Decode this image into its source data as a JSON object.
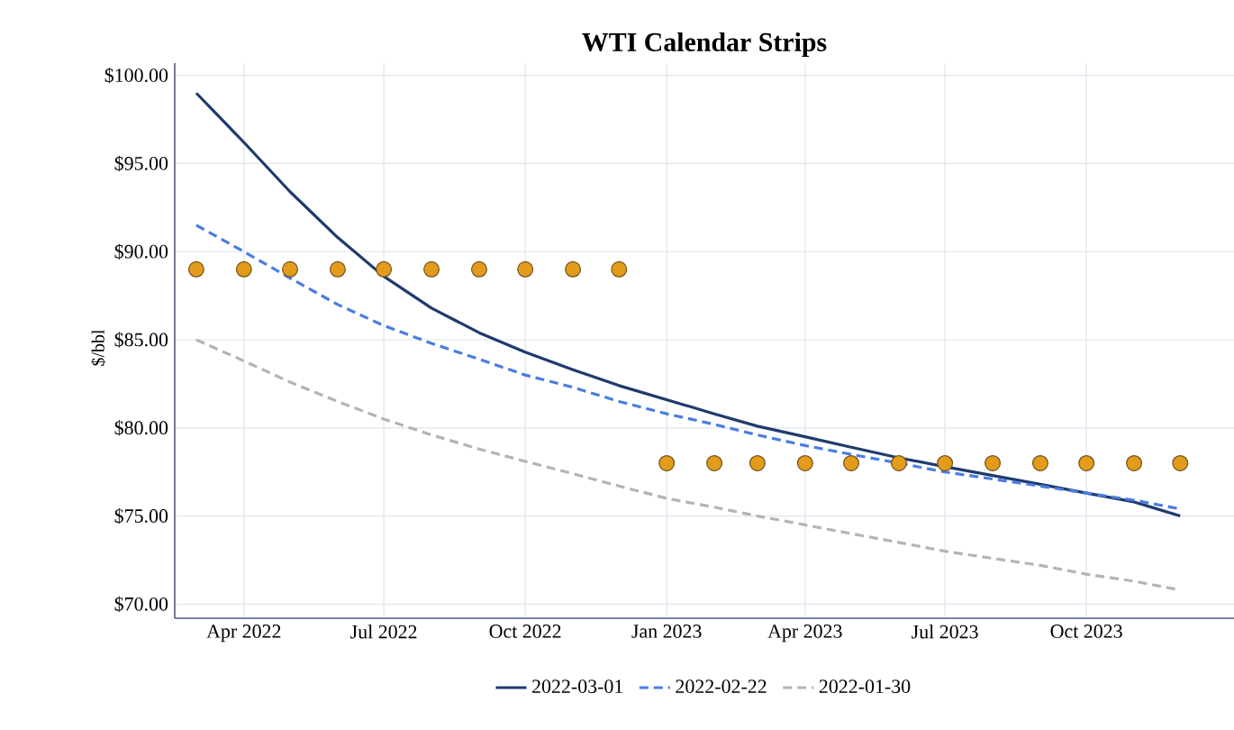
{
  "chart_data": {
    "type": "line",
    "title": "WTI Calendar Strips",
    "ylabel": "$/bbl",
    "x": [
      "2022-03",
      "2022-04",
      "2022-05",
      "2022-06",
      "2022-07",
      "2022-08",
      "2022-09",
      "2022-10",
      "2022-11",
      "2022-12",
      "2023-01",
      "2023-02",
      "2023-03",
      "2023-04",
      "2023-05",
      "2023-06",
      "2023-07",
      "2023-08",
      "2023-09",
      "2023-10",
      "2023-11",
      "2023-12"
    ],
    "series": [
      {
        "name": "2022-03-01",
        "color": "#1f3a6e",
        "line_style": "solid",
        "values": [
          99.0,
          96.2,
          93.4,
          90.8,
          88.6,
          86.8,
          85.4,
          84.3,
          83.3,
          82.4,
          81.6,
          80.8,
          80.1,
          79.5,
          78.9,
          78.3,
          77.8,
          77.3,
          76.8,
          76.3,
          75.8,
          75.0
        ]
      },
      {
        "name": "2022-02-22",
        "color": "#4a7de0",
        "line_style": "dashed",
        "values": [
          91.5,
          90.0,
          88.5,
          87.0,
          85.8,
          84.8,
          83.9,
          83.0,
          82.3,
          81.5,
          80.8,
          80.2,
          79.6,
          79.0,
          78.5,
          78.0,
          77.5,
          77.1,
          76.7,
          76.3,
          75.9,
          75.4
        ]
      },
      {
        "name": "2022-01-30",
        "color": "#b4b4b4",
        "line_style": "dashed",
        "values": [
          85.0,
          83.8,
          82.6,
          81.5,
          80.5,
          79.6,
          78.8,
          78.1,
          77.4,
          76.7,
          76.0,
          75.5,
          75.0,
          74.5,
          74.0,
          73.5,
          73.0,
          72.6,
          72.2,
          71.7,
          71.3,
          70.8
        ]
      },
      {
        "type": "scatter",
        "marker": "circle",
        "color": "#e39b1b",
        "values": [
          89.0,
          89.0,
          89.0,
          89.0,
          89.0,
          89.0,
          89.0,
          89.0,
          89.0,
          89.0,
          78.0,
          78.0,
          78.0,
          78.0,
          78.0,
          78.0,
          78.0,
          78.0,
          78.0,
          78.0,
          78.0,
          78.0
        ]
      }
    ],
    "marker": "none",
    "xlim": [
      "2022-02-15",
      "2024-01-05"
    ],
    "xticks": [
      {
        "value": "2022-04",
        "label": "Apr 2022"
      },
      {
        "value": "2022-07",
        "label": "Jul 2022"
      },
      {
        "value": "2022-10",
        "label": "Oct 2022"
      },
      {
        "value": "2023-01",
        "label": "Jan 2023"
      },
      {
        "value": "2023-04",
        "label": "Apr 2023"
      },
      {
        "value": "2023-07",
        "label": "Jul 2023"
      },
      {
        "value": "2023-10",
        "label": "Oct 2023"
      }
    ],
    "ylim": [
      69.2,
      100.7
    ],
    "yticks": [
      {
        "value": 70,
        "label": "$70.00"
      },
      {
        "value": 75,
        "label": "$75.00"
      },
      {
        "value": 80,
        "label": "$80.00"
      },
      {
        "value": 85,
        "label": "$85.00"
      },
      {
        "value": 90,
        "label": "$90.00"
      },
      {
        "value": 95,
        "label": "$95.00"
      },
      {
        "value": 100,
        "label": "$100.00"
      }
    ],
    "grid": true,
    "legend": "bottom"
  }
}
